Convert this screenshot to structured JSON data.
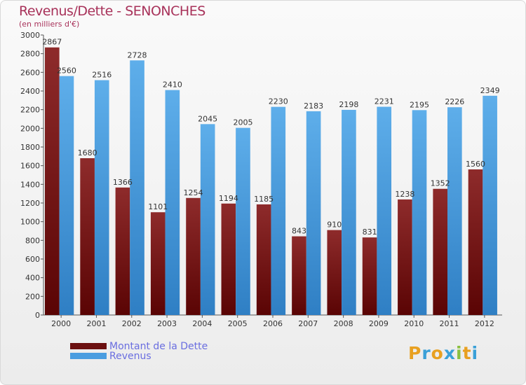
{
  "title": "Revenus/Dette - SENONCHES",
  "subtitle": "(en milliers d'€)",
  "chart_data": {
    "type": "bar",
    "title": "Revenus/Dette - SENONCHES",
    "subtitle": "(en milliers d'€)",
    "categories": [
      "2000",
      "2001",
      "2002",
      "2003",
      "2004",
      "2005",
      "2006",
      "2007",
      "2008",
      "2009",
      "2010",
      "2011",
      "2012"
    ],
    "series": [
      {
        "name": "Montant de la Dette",
        "color": "#7a1a1a",
        "values": [
          2867,
          1680,
          1366,
          1101,
          1254,
          1194,
          1185,
          843,
          910,
          831,
          1238,
          1352,
          1560
        ]
      },
      {
        "name": "Revenus",
        "color": "#4a9de0",
        "values": [
          2560,
          2516,
          2728,
          2410,
          2045,
          2005,
          2230,
          2183,
          2198,
          2231,
          2195,
          2226,
          2349
        ]
      }
    ],
    "ylim": [
      0,
      3000
    ],
    "yticks": [
      0,
      200,
      400,
      600,
      800,
      1000,
      1200,
      1400,
      1600,
      1800,
      2000,
      2200,
      2400,
      2600,
      2800,
      3000
    ],
    "xlabel": "",
    "ylabel": "",
    "legend_position": "bottom-left"
  },
  "legend": [
    {
      "label": "Montant de la Dette",
      "color": "#6b0f0f"
    },
    {
      "label": "Revenus",
      "color": "#4a9de0"
    }
  ],
  "logo": "Proxiti"
}
